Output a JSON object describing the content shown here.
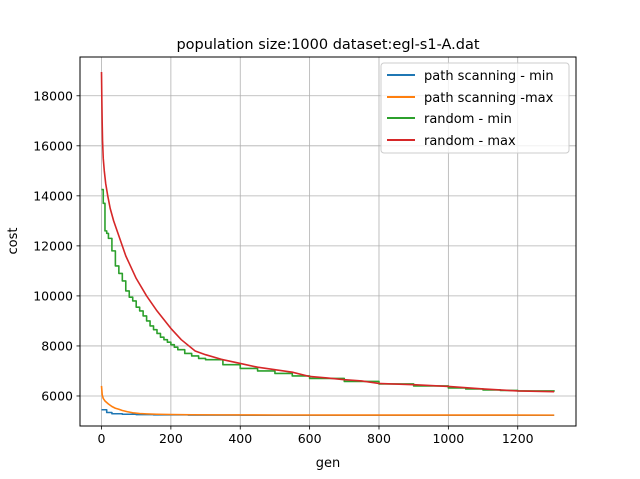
{
  "chart_data": {
    "type": "line",
    "title": "population size:1000  dataset:egl-s1-A.dat",
    "xlabel": "gen",
    "ylabel": "cost",
    "xlim": [
      -62,
      1368
    ],
    "ylim": [
      4800,
      19550
    ],
    "xticks": [
      0,
      200,
      400,
      600,
      800,
      1000,
      1200
    ],
    "yticks": [
      6000,
      8000,
      10000,
      12000,
      14000,
      16000,
      18000
    ],
    "grid": true,
    "legend_position": "top-right",
    "series": [
      {
        "name": "path scanning - min",
        "color": "#1f77b4",
        "step": true,
        "x": [
          0,
          15,
          30,
          60,
          100,
          150,
          250,
          400,
          1305
        ],
        "y": [
          5450,
          5340,
          5290,
          5270,
          5255,
          5245,
          5235,
          5230,
          5230
        ]
      },
      {
        "name": "path scanning -max",
        "color": "#ff7f0e",
        "step": false,
        "x": [
          0,
          2,
          5,
          10,
          20,
          30,
          40,
          50,
          60,
          75,
          90,
          110,
          130,
          160,
          200,
          260,
          350,
          500,
          700,
          1000,
          1305
        ],
        "y": [
          6400,
          6050,
          5900,
          5800,
          5680,
          5580,
          5510,
          5470,
          5420,
          5370,
          5330,
          5300,
          5285,
          5270,
          5260,
          5250,
          5245,
          5240,
          5238,
          5236,
          5235
        ]
      },
      {
        "name": "random - min",
        "color": "#2ca02c",
        "step": true,
        "x": [
          0,
          5,
          10,
          15,
          20,
          30,
          40,
          50,
          60,
          70,
          80,
          90,
          100,
          110,
          120,
          130,
          140,
          150,
          160,
          170,
          180,
          190,
          200,
          210,
          220,
          240,
          260,
          280,
          300,
          350,
          400,
          450,
          500,
          550,
          600,
          700,
          800,
          900,
          1000,
          1050,
          1100,
          1150,
          1200,
          1305
        ],
        "y": [
          14250,
          13700,
          12600,
          12500,
          12300,
          11800,
          11200,
          10900,
          10600,
          10200,
          9950,
          9800,
          9550,
          9400,
          9200,
          9000,
          8800,
          8650,
          8500,
          8350,
          8250,
          8150,
          8050,
          7950,
          7850,
          7700,
          7600,
          7500,
          7450,
          7250,
          7100,
          7000,
          6900,
          6800,
          6700,
          6580,
          6480,
          6400,
          6320,
          6280,
          6240,
          6220,
          6200,
          6180
        ]
      },
      {
        "name": "random - max",
        "color": "#d62728",
        "step": false,
        "x": [
          0,
          1,
          2,
          3,
          5,
          8,
          12,
          18,
          25,
          35,
          50,
          70,
          100,
          130,
          160,
          200,
          230,
          270,
          300,
          350,
          400,
          450,
          500,
          550,
          600,
          650,
          700,
          750,
          800,
          900,
          1000,
          1100,
          1200,
          1305
        ],
        "y": [
          18950,
          17800,
          16900,
          16200,
          15500,
          15000,
          14500,
          14000,
          13500,
          13000,
          12400,
          11600,
          10700,
          10000,
          9400,
          8700,
          8250,
          7800,
          7650,
          7450,
          7300,
          7150,
          7050,
          6950,
          6780,
          6720,
          6650,
          6600,
          6500,
          6450,
          6380,
          6280,
          6200,
          6170
        ]
      }
    ]
  }
}
